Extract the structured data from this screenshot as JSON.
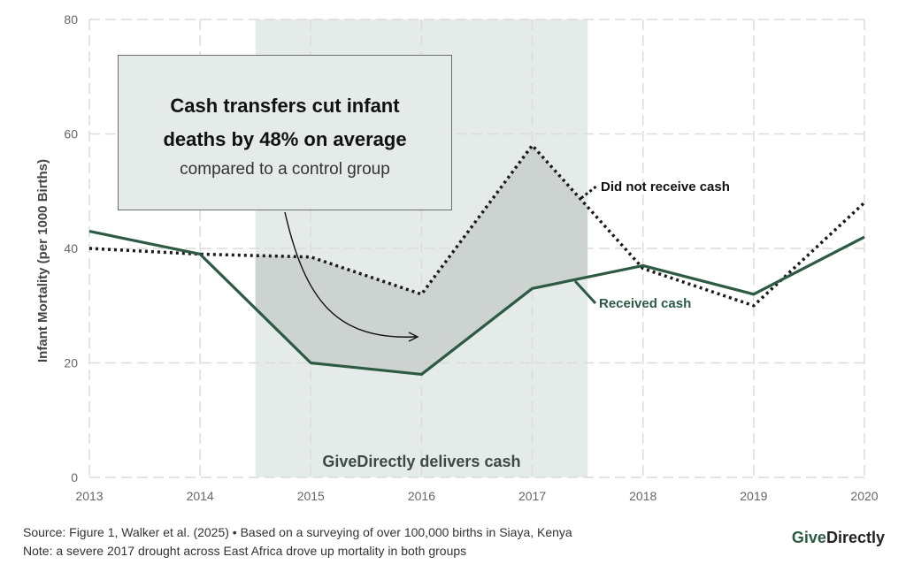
{
  "chart_data": {
    "type": "line",
    "ylabel": "Infant Mortality (per 1000 Births)",
    "xlabel": "",
    "x": [
      2013,
      2014,
      2015,
      2016,
      2017,
      2018,
      2019,
      2020
    ],
    "xlim": [
      2013,
      2020
    ],
    "ylim": [
      0,
      80
    ],
    "yticks": [
      0,
      20,
      40,
      60,
      80
    ],
    "grid": true,
    "series": [
      {
        "name": "Did not receive cash",
        "style": "dotted",
        "color": "#1a1a1a",
        "values": [
          40,
          39,
          38.5,
          32,
          58,
          36.5,
          30,
          48
        ]
      },
      {
        "name": "Received cash",
        "style": "solid",
        "color": "#2d5a43",
        "values": [
          43,
          39,
          20,
          18,
          33,
          37,
          32,
          42
        ]
      }
    ],
    "shaded_band": {
      "x_range": [
        2014.5,
        2017.5
      ],
      "label": "GiveDirectly delivers cash",
      "color": "#e4ebe8"
    },
    "gap_fill_color": "#c9cfcc",
    "callout": {
      "headline_line1": "Cash transfers cut infant",
      "headline_line2": "deaths by 48% on average",
      "subtext": "compared to a control group"
    }
  },
  "footer": {
    "source": "Source: Figure 1, Walker et al. (2025) • Based on a surveying of over 100,000 births in Siaya, Kenya",
    "note": "Note: a severe 2017 drought across East Africa drove up mortality in both groups"
  },
  "brand": {
    "part1": "Give",
    "part2": "Directly"
  }
}
